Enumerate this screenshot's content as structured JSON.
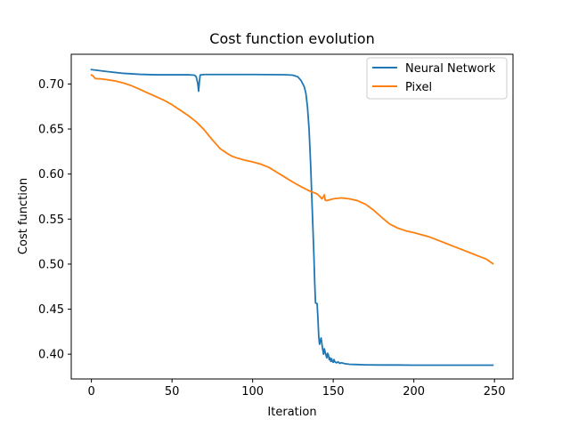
{
  "chart_data": {
    "type": "line",
    "title": "Cost function evolution",
    "xlabel": "Iteration",
    "ylabel": "Cost function",
    "xlim": [
      -12.5,
      261.5
    ],
    "ylim": [
      0.3725,
      0.733
    ],
    "xticks": [
      0,
      50,
      100,
      150,
      200,
      250
    ],
    "xtick_labels": [
      "0",
      "50",
      "100",
      "150",
      "200",
      "250"
    ],
    "yticks": [
      0.4,
      0.45,
      0.5,
      0.55,
      0.6,
      0.65,
      0.7
    ],
    "ytick_labels": [
      "0.40",
      "0.45",
      "0.50",
      "0.55",
      "0.60",
      "0.65",
      "0.70"
    ],
    "grid": false,
    "legend_position": "top-right",
    "series": [
      {
        "name": "Neural Network",
        "color": "#1f77b4",
        "points": [
          [
            0,
            0.716
          ],
          [
            10,
            0.7137
          ],
          [
            20,
            0.7118
          ],
          [
            30,
            0.7107
          ],
          [
            40,
            0.7102
          ],
          [
            50,
            0.7102
          ],
          [
            60,
            0.7102
          ],
          [
            64,
            0.7098
          ],
          [
            65,
            0.708
          ],
          [
            66,
            0.7005
          ],
          [
            66.5,
            0.692
          ],
          [
            67,
            0.703
          ],
          [
            67.5,
            0.71
          ],
          [
            70,
            0.7105
          ],
          [
            80,
            0.7105
          ],
          [
            90,
            0.7105
          ],
          [
            100,
            0.7105
          ],
          [
            110,
            0.7104
          ],
          [
            120,
            0.7103
          ],
          [
            125,
            0.7098
          ],
          [
            128,
            0.708
          ],
          [
            130,
            0.704
          ],
          [
            132,
            0.697
          ],
          [
            133,
            0.69
          ],
          [
            134,
            0.675
          ],
          [
            135,
            0.65
          ],
          [
            136,
            0.61
          ],
          [
            137,
            0.56
          ],
          [
            138,
            0.51
          ],
          [
            138.5,
            0.48
          ],
          [
            139,
            0.457
          ],
          [
            140,
            0.456
          ],
          [
            140.5,
            0.44
          ],
          [
            141,
            0.42
          ],
          [
            141.5,
            0.411
          ],
          [
            142,
            0.415
          ],
          [
            142.5,
            0.418
          ],
          [
            143,
            0.411
          ],
          [
            143.5,
            0.405
          ],
          [
            144,
            0.4
          ],
          [
            144.5,
            0.406
          ],
          [
            145,
            0.402
          ],
          [
            145.5,
            0.399
          ],
          [
            146,
            0.396
          ],
          [
            146.5,
            0.401
          ],
          [
            147,
            0.399
          ],
          [
            147.5,
            0.394
          ],
          [
            148,
            0.396
          ],
          [
            148.5,
            0.392
          ],
          [
            149,
            0.395
          ],
          [
            149.5,
            0.392
          ],
          [
            150,
            0.391
          ],
          [
            150.5,
            0.394
          ],
          [
            151,
            0.3915
          ],
          [
            152,
            0.3905
          ],
          [
            153,
            0.3915
          ],
          [
            154,
            0.3898
          ],
          [
            155,
            0.3905
          ],
          [
            157,
            0.3895
          ],
          [
            160,
            0.3888
          ],
          [
            165,
            0.3885
          ],
          [
            170,
            0.3882
          ],
          [
            180,
            0.388
          ],
          [
            190,
            0.388
          ],
          [
            200,
            0.3878
          ],
          [
            210,
            0.3878
          ],
          [
            220,
            0.3878
          ],
          [
            230,
            0.3878
          ],
          [
            240,
            0.3878
          ],
          [
            249,
            0.3878
          ]
        ]
      },
      {
        "name": "Pixel",
        "color": "#ff7f0e",
        "points": [
          [
            0,
            0.71
          ],
          [
            1,
            0.709
          ],
          [
            2,
            0.707
          ],
          [
            2.5,
            0.706
          ],
          [
            5,
            0.7058
          ],
          [
            10,
            0.7047
          ],
          [
            15,
            0.7033
          ],
          [
            20,
            0.701
          ],
          [
            25,
            0.698
          ],
          [
            30,
            0.694
          ],
          [
            35,
            0.69
          ],
          [
            40,
            0.686
          ],
          [
            45,
            0.682
          ],
          [
            50,
            0.677
          ],
          [
            55,
            0.671
          ],
          [
            60,
            0.665
          ],
          [
            65,
            0.658
          ],
          [
            70,
            0.649
          ],
          [
            75,
            0.638
          ],
          [
            80,
            0.628
          ],
          [
            85,
            0.622
          ],
          [
            87,
            0.62
          ],
          [
            90,
            0.618
          ],
          [
            95,
            0.6155
          ],
          [
            100,
            0.6135
          ],
          [
            105,
            0.611
          ],
          [
            110,
            0.6075
          ],
          [
            115,
            0.602
          ],
          [
            120,
            0.5965
          ],
          [
            125,
            0.591
          ],
          [
            130,
            0.586
          ],
          [
            135,
            0.5815
          ],
          [
            140,
            0.578
          ],
          [
            142,
            0.5745
          ],
          [
            143,
            0.5725
          ],
          [
            143.5,
            0.574
          ],
          [
            144,
            0.575
          ],
          [
            144.5,
            0.577
          ],
          [
            145,
            0.571
          ],
          [
            146,
            0.5705
          ],
          [
            148,
            0.5715
          ],
          [
            150,
            0.5725
          ],
          [
            155,
            0.5735
          ],
          [
            160,
            0.5725
          ],
          [
            165,
            0.5705
          ],
          [
            170,
            0.5665
          ],
          [
            175,
            0.56
          ],
          [
            180,
            0.552
          ],
          [
            185,
            0.5445
          ],
          [
            190,
            0.54
          ],
          [
            195,
            0.537
          ],
          [
            200,
            0.535
          ],
          [
            205,
            0.5325
          ],
          [
            210,
            0.53
          ],
          [
            215,
            0.5265
          ],
          [
            220,
            0.523
          ],
          [
            225,
            0.5195
          ],
          [
            230,
            0.516
          ],
          [
            235,
            0.5125
          ],
          [
            240,
            0.509
          ],
          [
            245,
            0.5055
          ],
          [
            249,
            0.5005
          ]
        ]
      }
    ]
  }
}
